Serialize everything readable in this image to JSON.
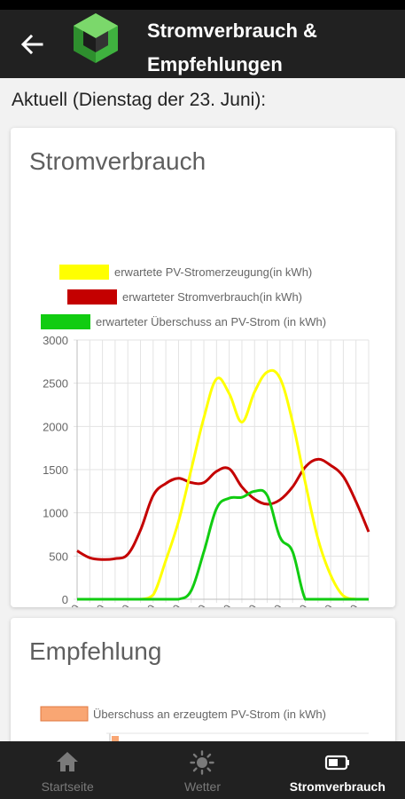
{
  "app_bar": {
    "title_line1": "Stromverbrauch &",
    "title_line2": "Empfehlungen"
  },
  "date_heading": "Aktuell (Dienstag der 23. Juni):",
  "card_consumption": {
    "title": "Stromverbrauch"
  },
  "card_recommendation": {
    "title": "Empfehlung"
  },
  "chart_data": [
    {
      "type": "line",
      "title": "",
      "xlabel": "",
      "ylabel": "",
      "ylim": [
        0,
        3000
      ],
      "yticks": [
        "0",
        "500",
        "1000",
        "1500",
        "2000",
        "2500",
        "3000"
      ],
      "x": [
        "0:00",
        "1:00",
        "2:00",
        "3:00",
        "4:00",
        "5:00",
        "6:00",
        "7:00",
        "8:00",
        "9:00",
        "10:00",
        "11:00",
        "12:00",
        "13:00",
        "14:00",
        "15:00",
        "16:00",
        "17:00",
        "18:00",
        "19:00",
        "20:00",
        "21:00",
        "22:00",
        "23:00"
      ],
      "xtick_labels": [
        "0:00",
        "2:00",
        "4:00",
        "6:00",
        "8:00",
        "10:00",
        "12:00",
        "14:00",
        "16:00",
        "18:00",
        "20:00",
        "22:00"
      ],
      "legend_position": "top",
      "grid": true,
      "series": [
        {
          "name": "erwartete PV-Stromerzeugung(in kWh)",
          "color": "#ffff00",
          "values": [
            0,
            0,
            0,
            0,
            0,
            0,
            50,
            450,
            900,
            1500,
            2100,
            2550,
            2380,
            2050,
            2400,
            2630,
            2560,
            2050,
            1350,
            700,
            280,
            40,
            0,
            0
          ]
        },
        {
          "name": "erwarteter Stromverbrauch(in kWh)",
          "color": "#c40000",
          "values": [
            560,
            480,
            460,
            470,
            520,
            800,
            1200,
            1340,
            1400,
            1350,
            1350,
            1480,
            1510,
            1300,
            1160,
            1100,
            1150,
            1300,
            1530,
            1620,
            1550,
            1420,
            1130,
            780
          ]
        },
        {
          "name": "erwarteter Überschuss an PV-Strom (in kWh)",
          "color": "#11cc11",
          "values": [
            0,
            0,
            0,
            0,
            0,
            0,
            0,
            0,
            0,
            100,
            550,
            1050,
            1170,
            1180,
            1250,
            1200,
            720,
            550,
            0,
            0,
            0,
            0,
            0,
            0
          ]
        }
      ]
    },
    {
      "type": "bar",
      "title": "",
      "series": [
        {
          "name": "Überschuss an erzeugtem PV-Strom (in kWh)",
          "color": "#f9a673",
          "values": []
        }
      ]
    }
  ],
  "bottom_nav": {
    "items": [
      {
        "label": "Startseite",
        "icon": "home-icon"
      },
      {
        "label": "Wetter",
        "icon": "sun-icon"
      },
      {
        "label": "Stromverbrauch",
        "icon": "battery-icon"
      }
    ],
    "active_index": 2
  }
}
